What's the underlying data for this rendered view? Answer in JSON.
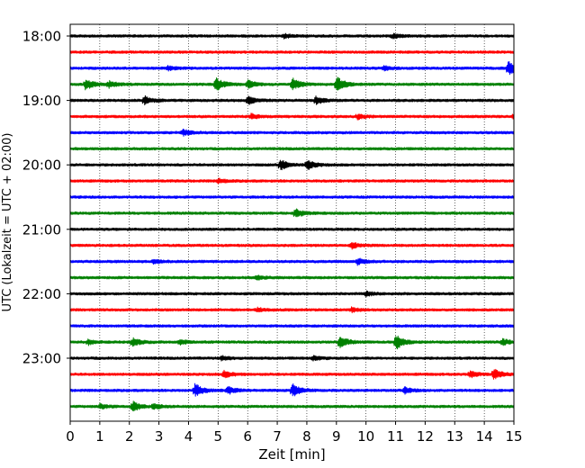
{
  "chart_data": {
    "type": "line",
    "subtype": "helicorder seismogram",
    "xlabel": "Zeit  [min]",
    "ylabel": "UTC (Lokalzeit = UTC + 02:00)",
    "xlim": [
      0,
      15
    ],
    "x_ticks": [
      0,
      1,
      2,
      3,
      4,
      5,
      6,
      7,
      8,
      9,
      10,
      11,
      12,
      13,
      14,
      15
    ],
    "x_tick_labels": [
      "0",
      "1",
      "2",
      "3",
      "4",
      "5",
      "6",
      "7",
      "8",
      "9",
      "10",
      "11",
      "12",
      "13",
      "14",
      "15"
    ],
    "y_tick_labels": [
      "18:00",
      "19:00",
      "20:00",
      "21:00",
      "22:00",
      "23:00"
    ],
    "grid": "vertical dotted lines at each minute",
    "line_interval_minutes": 15,
    "colors_cycle": [
      "#000000",
      "#ff0000",
      "#0000ff",
      "#008000"
    ],
    "traces": [
      {
        "start": "18:00",
        "color": "#000000",
        "events": [
          {
            "t": 7.2,
            "amp": 1.0
          },
          {
            "t": 10.9,
            "amp": 1.0
          }
        ]
      },
      {
        "start": "18:15",
        "color": "#ff0000",
        "events": []
      },
      {
        "start": "18:30",
        "color": "#0000ff",
        "events": [
          {
            "t": 3.3,
            "amp": 1.0
          },
          {
            "t": 10.6,
            "amp": 1.0
          },
          {
            "t": 14.8,
            "amp": 3.5
          }
        ]
      },
      {
        "start": "18:45",
        "color": "#008000",
        "events": [
          {
            "t": 0.5,
            "amp": 2.8
          },
          {
            "t": 1.3,
            "amp": 1.5
          },
          {
            "t": 4.9,
            "amp": 3.5
          },
          {
            "t": 6.0,
            "amp": 2.0
          },
          {
            "t": 7.5,
            "amp": 3.0
          },
          {
            "t": 9.0,
            "amp": 3.8
          }
        ]
      },
      {
        "start": "19:00",
        "color": "#000000",
        "events": [
          {
            "t": 2.5,
            "amp": 2.0
          },
          {
            "t": 6.0,
            "amp": 2.0
          },
          {
            "t": 8.3,
            "amp": 2.0
          }
        ]
      },
      {
        "start": "19:15",
        "color": "#ff0000",
        "events": [
          {
            "t": 6.1,
            "amp": 1.2
          },
          {
            "t": 9.7,
            "amp": 1.2
          },
          {
            "t": 15.0,
            "amp": 1.6
          }
        ]
      },
      {
        "start": "19:30",
        "color": "#0000ff",
        "events": [
          {
            "t": 3.8,
            "amp": 1.5
          }
        ]
      },
      {
        "start": "19:45",
        "color": "#008000",
        "events": []
      },
      {
        "start": "20:00",
        "color": "#000000",
        "events": [
          {
            "t": 7.1,
            "amp": 2.5
          },
          {
            "t": 8.0,
            "amp": 2.5
          }
        ]
      },
      {
        "start": "20:15",
        "color": "#ff0000",
        "events": [
          {
            "t": 5.0,
            "amp": 1.0
          }
        ]
      },
      {
        "start": "20:30",
        "color": "#0000ff",
        "events": []
      },
      {
        "start": "20:45",
        "color": "#008000",
        "events": [
          {
            "t": 7.6,
            "amp": 2.3
          }
        ]
      },
      {
        "start": "21:00",
        "color": "#000000",
        "events": []
      },
      {
        "start": "21:15",
        "color": "#ff0000",
        "events": [
          {
            "t": 9.5,
            "amp": 1.5
          }
        ]
      },
      {
        "start": "21:30",
        "color": "#0000ff",
        "events": [
          {
            "t": 2.8,
            "amp": 1.0
          },
          {
            "t": 9.7,
            "amp": 1.5
          }
        ]
      },
      {
        "start": "21:45",
        "color": "#008000",
        "events": [
          {
            "t": 6.3,
            "amp": 1.0
          }
        ]
      },
      {
        "start": "22:00",
        "color": "#000000",
        "events": [
          {
            "t": 10.0,
            "amp": 1.0
          }
        ]
      },
      {
        "start": "22:15",
        "color": "#ff0000",
        "events": [
          {
            "t": 6.3,
            "amp": 1.0
          },
          {
            "t": 9.5,
            "amp": 1.0
          }
        ]
      },
      {
        "start": "22:30",
        "color": "#0000ff",
        "events": []
      },
      {
        "start": "22:45",
        "color": "#008000",
        "events": [
          {
            "t": 0.6,
            "amp": 1.2
          },
          {
            "t": 2.1,
            "amp": 2.2
          },
          {
            "t": 3.7,
            "amp": 1.2
          },
          {
            "t": 9.1,
            "amp": 3.2
          },
          {
            "t": 11.0,
            "amp": 3.8
          },
          {
            "t": 14.6,
            "amp": 1.5
          }
        ]
      },
      {
        "start": "23:00",
        "color": "#000000",
        "events": [
          {
            "t": 5.1,
            "amp": 1.0
          },
          {
            "t": 8.2,
            "amp": 1.0
          }
        ]
      },
      {
        "start": "23:15",
        "color": "#ff0000",
        "events": [
          {
            "t": 5.2,
            "amp": 1.6
          },
          {
            "t": 13.5,
            "amp": 1.6
          },
          {
            "t": 14.3,
            "amp": 2.5
          }
        ]
      },
      {
        "start": "23:30",
        "color": "#0000ff",
        "events": [
          {
            "t": 4.2,
            "amp": 3.5
          },
          {
            "t": 5.3,
            "amp": 2.0
          },
          {
            "t": 7.5,
            "amp": 3.2
          },
          {
            "t": 11.3,
            "amp": 1.4
          }
        ]
      },
      {
        "start": "23:45",
        "color": "#008000",
        "events": [
          {
            "t": 1.0,
            "amp": 1.2
          },
          {
            "t": 2.1,
            "amp": 2.4
          },
          {
            "t": 2.8,
            "amp": 1.2
          }
        ]
      }
    ]
  }
}
